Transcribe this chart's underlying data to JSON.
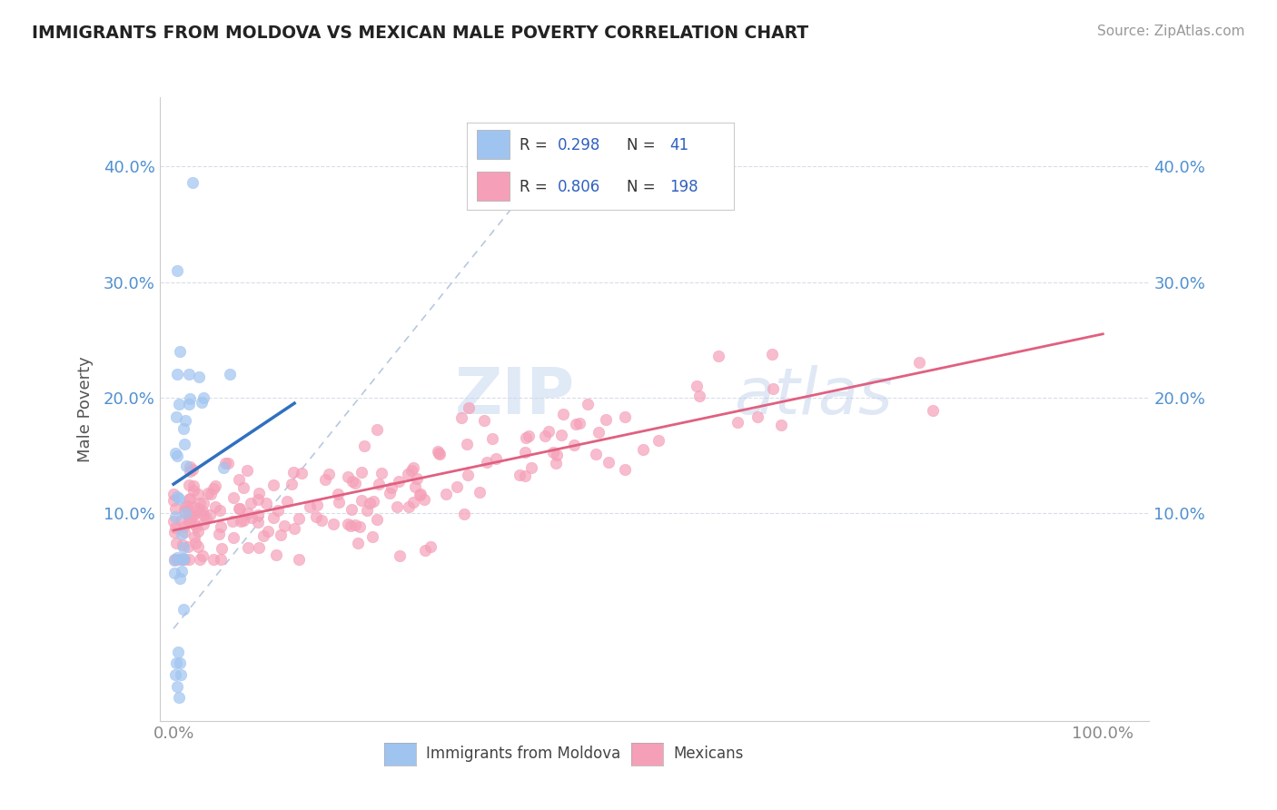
{
  "title": "IMMIGRANTS FROM MOLDOVA VS MEXICAN MALE POVERTY CORRELATION CHART",
  "source": "Source: ZipAtlas.com",
  "ylabel": "Male Poverty",
  "moldova_color": "#a0c4f0",
  "moldova_edge_color": "#a0c4f0",
  "mexico_color": "#f5a0b8",
  "mexico_edge_color": "#f5a0b8",
  "moldova_line_color": "#3070c0",
  "mexico_line_color": "#e06080",
  "diagonal_color": "#b8c8e0",
  "background_color": "#ffffff",
  "grid_color": "#d8dde8",
  "ytick_color": "#5090d0",
  "xtick_color": "#888888",
  "ylabel_color": "#555555",
  "title_color": "#222222",
  "source_color": "#999999",
  "watermark_color": "#dce8f5",
  "legend_r1": "R = 0.298",
  "legend_n1": "N =  41",
  "legend_r2": "R = 0.806",
  "legend_n2": "N = 198",
  "moldova_seed": 42,
  "mexico_seed": 77,
  "xlim": [
    -0.015,
    1.05
  ],
  "ylim": [
    -0.08,
    0.46
  ],
  "mol_line_x0": 0.0,
  "mol_line_x1": 0.13,
  "mol_line_y0": 0.125,
  "mol_line_y1": 0.195,
  "mex_line_x0": 0.0,
  "mex_line_x1": 1.0,
  "mex_line_y0": 0.085,
  "mex_line_y1": 0.255
}
